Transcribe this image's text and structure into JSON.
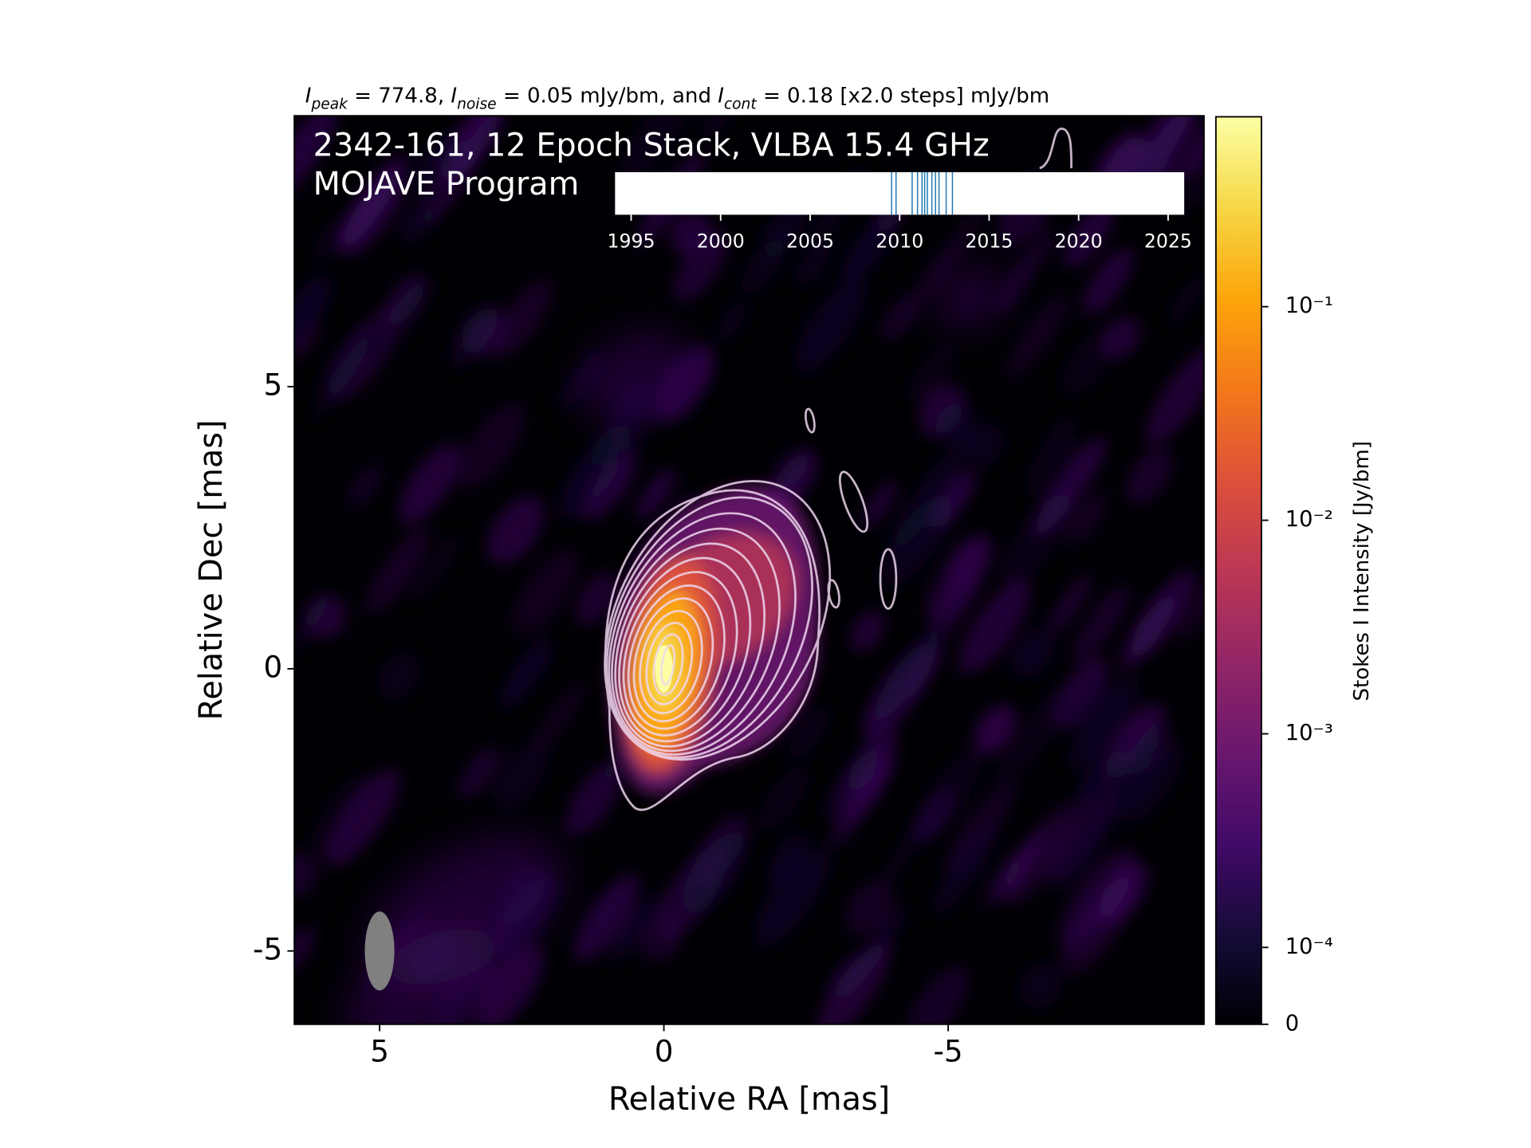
{
  "chart_data": {
    "type": "image",
    "title": [
      {
        "text": "I",
        "italic": true
      },
      {
        "text": "peak",
        "italic": true,
        "sub": true
      },
      {
        "text": " = 774.8, "
      },
      {
        "text": "I",
        "italic": true
      },
      {
        "text": "noise",
        "italic": true,
        "sub": true
      },
      {
        "text": " = 0.05 mJy/bm, and "
      },
      {
        "text": "I",
        "italic": true
      },
      {
        "text": "cont",
        "italic": true,
        "sub": true
      },
      {
        "text": " = 0.18 [x2.0 steps] mJy/bm"
      }
    ],
    "annotations": [
      "2342-161, 12 Epoch Stack, VLBA 15.4 GHz",
      "MOJAVE Program"
    ],
    "x_label": "Relative RA [mas]",
    "y_label": "Relative Dec [mas]",
    "xlim": [
      6.5,
      -9.5
    ],
    "xticks": [
      5,
      0,
      -5
    ],
    "ylim": [
      -6.3,
      9.8
    ],
    "yticks": [
      -5,
      0,
      5
    ],
    "peak": {
      "x": 0,
      "y": 0,
      "value": 0.7748
    },
    "beam": {
      "x": 5,
      "y": -5,
      "major": 1.4,
      "minor": 0.52,
      "color": "#808080"
    },
    "colorbar": {
      "label": "Stokes I Intensity [Jy/bm]",
      "scale": "symlog",
      "colormap": "inferno",
      "lim": [
        0,
        0.7748
      ],
      "ticks": [
        0,
        {
          "value": 0.0001,
          "label": "10⁻⁴"
        },
        {
          "value": 0.001,
          "label": "10⁻³"
        },
        {
          "value": 0.01,
          "label": "10⁻²"
        },
        {
          "value": 0.1,
          "label": "10⁻¹"
        }
      ]
    },
    "epochs": {
      "xlim": [
        1994.1,
        2025.9
      ],
      "xticks": [
        1995,
        2000,
        2005,
        2010,
        2015,
        2020,
        2025
      ],
      "values": [
        2009.55,
        2009.8,
        2010.7,
        2011.0,
        2011.25,
        2011.4,
        2011.55,
        2011.8,
        2012.0,
        2012.2,
        2012.6,
        2012.95
      ],
      "color": "#1f77b4"
    }
  }
}
